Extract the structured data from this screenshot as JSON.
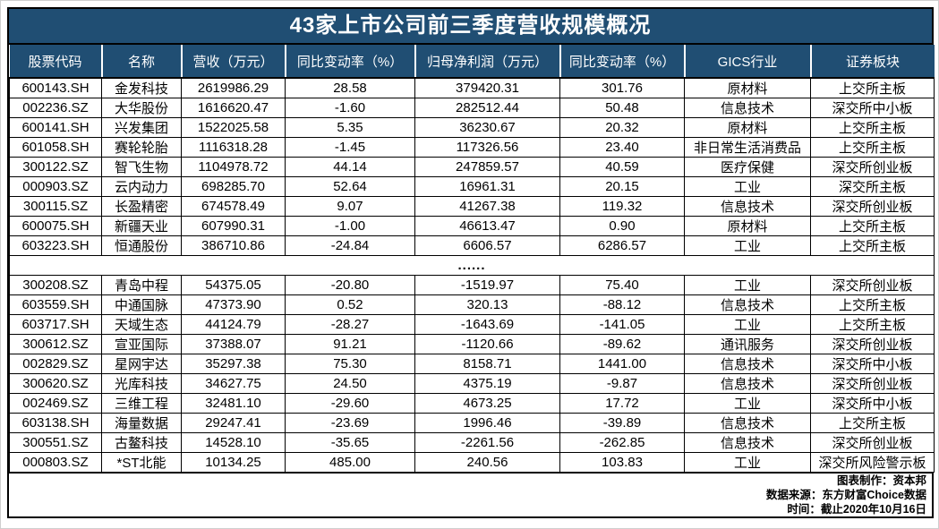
{
  "chart_data": {
    "type": "table",
    "title": "43家上市公司前三季度营收规模概况",
    "columns": [
      "股票代码",
      "名称",
      "营收（万元）",
      "同比变动率（%）",
      "归母净利润（万元）",
      "同比变动率（%）",
      "GICS行业",
      "证券板块"
    ],
    "rows": [
      [
        "600143.SH",
        "金发科技",
        "2619986.29",
        "28.58",
        "379420.31",
        "301.76",
        "原材料",
        "上交所主板"
      ],
      [
        "002236.SZ",
        "大华股份",
        "1616620.47",
        "-1.60",
        "282512.44",
        "50.48",
        "信息技术",
        "深交所中小板"
      ],
      [
        "600141.SH",
        "兴发集团",
        "1522025.58",
        "5.35",
        "36230.67",
        "20.32",
        "原材料",
        "上交所主板"
      ],
      [
        "601058.SH",
        "赛轮轮胎",
        "1116318.28",
        "-1.45",
        "117326.56",
        "23.40",
        "非日常生活消费品",
        "上交所主板"
      ],
      [
        "300122.SZ",
        "智飞生物",
        "1104978.72",
        "44.14",
        "247859.57",
        "40.59",
        "医疗保健",
        "深交所创业板"
      ],
      [
        "000903.SZ",
        "云内动力",
        "698285.70",
        "52.64",
        "16961.31",
        "20.15",
        "工业",
        "深交所主板"
      ],
      [
        "300115.SZ",
        "长盈精密",
        "674578.49",
        "9.07",
        "41267.38",
        "119.32",
        "信息技术",
        "深交所创业板"
      ],
      [
        "600075.SH",
        "新疆天业",
        "607990.31",
        "-1.00",
        "46613.47",
        "0.90",
        "原材料",
        "上交所主板"
      ],
      [
        "603223.SH",
        "恒通股份",
        "386710.86",
        "-24.84",
        "6606.57",
        "6286.57",
        "工业",
        "上交所主板"
      ],
      [
        "300208.SZ",
        "青岛中程",
        "54375.05",
        "-20.80",
        "-1519.97",
        "75.40",
        "工业",
        "深交所创业板"
      ],
      [
        "603559.SH",
        "中通国脉",
        "47373.90",
        "0.52",
        "320.13",
        "-88.12",
        "信息技术",
        "上交所主板"
      ],
      [
        "603717.SH",
        "天域生态",
        "44124.79",
        "-28.27",
        "-1643.69",
        "-141.05",
        "工业",
        "上交所主板"
      ],
      [
        "300612.SZ",
        "宣亚国际",
        "37388.07",
        "91.21",
        "-1120.66",
        "-89.62",
        "通讯服务",
        "深交所创业板"
      ],
      [
        "002829.SZ",
        "星网宇达",
        "35297.38",
        "75.30",
        "8158.71",
        "1441.00",
        "信息技术",
        "深交所中小板"
      ],
      [
        "300620.SZ",
        "光库科技",
        "34627.75",
        "24.50",
        "4375.19",
        "-9.87",
        "信息技术",
        "深交所创业板"
      ],
      [
        "002469.SZ",
        "三维工程",
        "32481.10",
        "-29.60",
        "4673.25",
        "17.72",
        "工业",
        "深交所中小板"
      ],
      [
        "603138.SH",
        "海量数据",
        "29247.41",
        "-23.69",
        "1996.46",
        "-39.89",
        "信息技术",
        "上交所主板"
      ],
      [
        "300551.SZ",
        "古鳌科技",
        "14528.10",
        "-35.65",
        "-2261.56",
        "-262.85",
        "信息技术",
        "深交所创业板"
      ],
      [
        "000803.SZ",
        "*ST北能",
        "10134.25",
        "485.00",
        "240.56",
        "103.83",
        "工业",
        "深交所风险警示板"
      ]
    ],
    "ellipsis_after": 9,
    "ellipsis_marker": "......"
  },
  "footer": {
    "lines": [
      "图表制作：资本邦",
      "数据来源：东方财富Choice数据",
      "时间：截止2020年10月16日"
    ]
  },
  "colors": {
    "header_bg": "#204E73",
    "header_text": "#FFFFFF",
    "body_grid": "#000000",
    "body_text": "#000000"
  }
}
